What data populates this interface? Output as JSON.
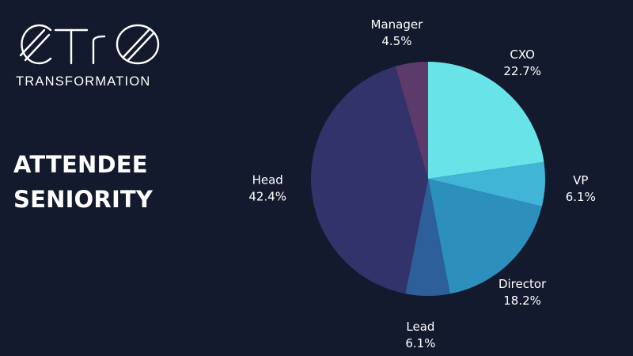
{
  "brand": {
    "logo_text": "CTrO",
    "subtitle": "TRANSFORMATION"
  },
  "slide": {
    "title_line1": "ATTENDEE",
    "title_line2": "SENIORITY"
  },
  "colors": {
    "background": "#141a2e",
    "text": "#ffffff"
  },
  "chart_data": {
    "type": "pie",
    "start_angle_deg": 0,
    "direction": "clockwise",
    "slices": [
      {
        "label": "CXO",
        "value": 22.7,
        "value_label": "22.7%",
        "color": "#68e4e8"
      },
      {
        "label": "VP",
        "value": 6.1,
        "value_label": "6.1%",
        "color": "#41b5d6"
      },
      {
        "label": "Director",
        "value": 18.2,
        "value_label": "18.2%",
        "color": "#2d8fbc"
      },
      {
        "label": "Lead",
        "value": 6.1,
        "value_label": "6.1%",
        "color": "#2d5f9a"
      },
      {
        "label": "Head",
        "value": 42.4,
        "value_label": "42.4%",
        "color": "#33336b"
      },
      {
        "label": "Manager",
        "value": 4.5,
        "value_label": "4.5%",
        "color": "#5c3a6a"
      }
    ]
  }
}
